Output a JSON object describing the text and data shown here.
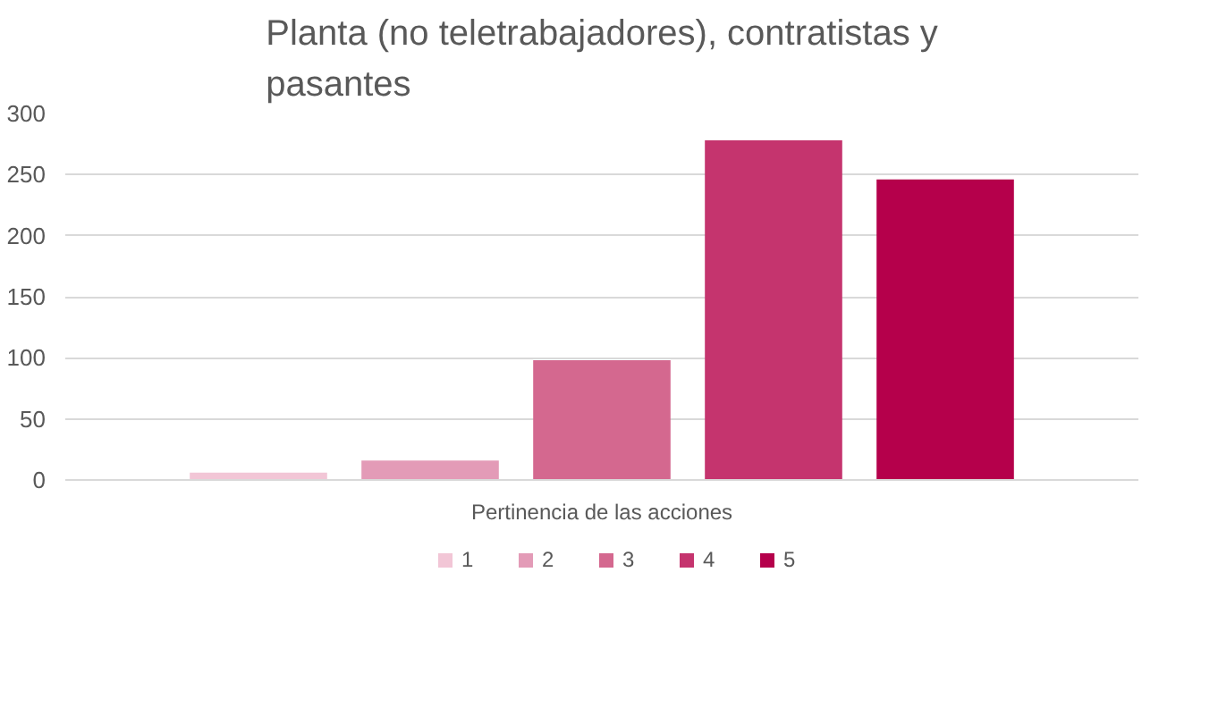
{
  "chart_data": {
    "type": "bar",
    "title": "Planta (no teletrabajadores), contratistas y pasantes",
    "categories": [
      "Pertinencia de las acciones"
    ],
    "series": [
      {
        "name": "1",
        "color": "#f2c6d6",
        "values": [
          6
        ]
      },
      {
        "name": "2",
        "color": "#e39bb7",
        "values": [
          16
        ]
      },
      {
        "name": "3",
        "color": "#d4688f",
        "values": [
          98
        ]
      },
      {
        "name": "4",
        "color": "#c5346e",
        "values": [
          278
        ]
      },
      {
        "name": "5",
        "color": "#b5004b",
        "values": [
          246
        ]
      }
    ],
    "ylim": [
      0,
      300
    ],
    "yticks": [
      0,
      50,
      100,
      150,
      200,
      250,
      300
    ],
    "grid": "y",
    "legend": "bottom"
  }
}
